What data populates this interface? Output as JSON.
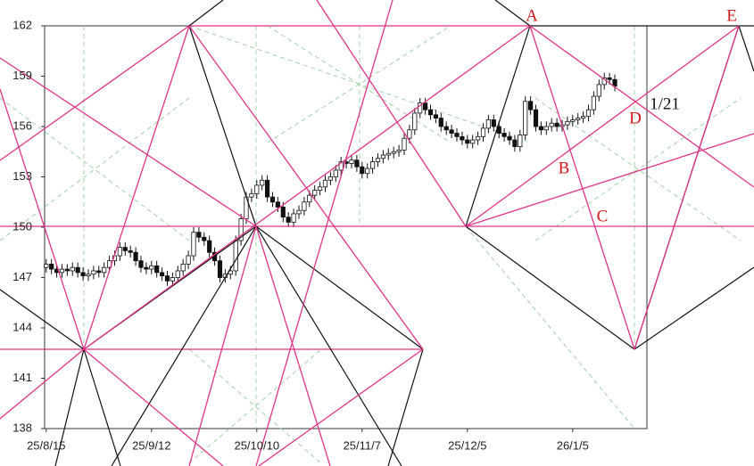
{
  "chart_data": {
    "type": "candlestick",
    "xlim": [
      -0.3,
      114.1
    ],
    "xticks": [
      {
        "value": 0,
        "label": "25/8/15"
      },
      {
        "value": 20,
        "label": "25/9/12"
      },
      {
        "value": 40,
        "label": "25/10/10"
      },
      {
        "value": 60,
        "label": "25/11/7"
      },
      {
        "value": 80,
        "label": "25/12/5"
      },
      {
        "value": 100,
        "label": "26/1/5"
      }
    ],
    "ylim": [
      138,
      162
    ],
    "yticks": [
      138,
      141,
      144,
      147,
      150,
      153,
      156,
      159,
      162
    ],
    "annotations": [
      "A",
      "B",
      "C",
      "D",
      "E",
      "1/21"
    ],
    "open": [
      147.6,
      147.8,
      147.5,
      147.3,
      147.5,
      147.4,
      147.6,
      147.3,
      147.1,
      147.2,
      147.4,
      147.3,
      147.6,
      148.0,
      148.3,
      148.8,
      148.6,
      148.5,
      148.0,
      147.6,
      147.5,
      147.7,
      147.3,
      147.1,
      146.8,
      147.0,
      147.4,
      147.8,
      148.3,
      149.7,
      149.4,
      149.2,
      148.5,
      148.0,
      147.0,
      147.2,
      147.4,
      149.2,
      150.5,
      151.8,
      152.0,
      152.5,
      152.8,
      151.8,
      151.5,
      151.2,
      150.6,
      150.3,
      150.8,
      151.0,
      151.5,
      151.9,
      152.2,
      152.4,
      152.8,
      153.0,
      153.4,
      153.9,
      153.8,
      154.0,
      153.6,
      153.2,
      153.5,
      153.9,
      154.1,
      154.3,
      154.4,
      154.5,
      154.6,
      155.3,
      155.8,
      156.8,
      157.4,
      157.0,
      156.7,
      156.5,
      156.0,
      155.8,
      155.6,
      155.4,
      155.2,
      155.0,
      155.2,
      155.4,
      155.9,
      156.4,
      156.0,
      155.6,
      155.4,
      155.2,
      154.8,
      155.5,
      157.5,
      157.0,
      156.0,
      155.8,
      156.0,
      156.2,
      156.0,
      156.1,
      156.3,
      156.4,
      156.5,
      156.6,
      157.0,
      157.8,
      158.5,
      158.9,
      158.8
    ],
    "high": [
      148.1,
      148.1,
      147.8,
      147.8,
      147.8,
      147.9,
      147.9,
      147.6,
      147.5,
      147.7,
      147.7,
      147.9,
      148.3,
      148.6,
      149.1,
      149.1,
      148.9,
      148.8,
      148.3,
      147.9,
      148.0,
      148.0,
      147.6,
      147.4,
      147.3,
      147.7,
      148.1,
      148.6,
      150.0,
      150.0,
      149.7,
      149.5,
      148.8,
      148.3,
      147.5,
      147.7,
      149.5,
      150.8,
      152.1,
      152.3,
      152.8,
      153.1,
      153.1,
      152.1,
      151.8,
      151.5,
      150.9,
      151.1,
      151.3,
      151.8,
      152.2,
      152.5,
      152.7,
      153.1,
      153.3,
      153.7,
      154.2,
      154.2,
      154.3,
      154.3,
      153.9,
      153.8,
      154.2,
      154.4,
      154.6,
      154.7,
      154.8,
      154.9,
      155.6,
      156.1,
      157.1,
      157.7,
      157.7,
      157.3,
      157.0,
      156.8,
      156.3,
      156.1,
      155.9,
      155.7,
      155.5,
      155.5,
      155.7,
      156.2,
      156.7,
      156.7,
      156.3,
      155.9,
      155.7,
      155.5,
      155.8,
      157.8,
      157.8,
      157.3,
      156.3,
      156.3,
      156.5,
      156.5,
      156.4,
      156.6,
      156.7,
      156.8,
      156.9,
      157.3,
      158.1,
      158.8,
      159.2,
      159.2,
      159.1
    ],
    "low": [
      147.3,
      147.2,
      147.0,
      147.0,
      147.1,
      147.1,
      147.0,
      146.8,
      146.8,
      146.9,
      147.0,
      147.0,
      147.3,
      147.7,
      148.0,
      148.3,
      148.2,
      147.7,
      147.3,
      147.2,
      147.2,
      147.0,
      146.8,
      146.5,
      146.5,
      146.7,
      147.1,
      147.5,
      148.0,
      149.1,
      148.9,
      148.2,
      147.7,
      146.7,
      146.7,
      146.9,
      147.1,
      148.9,
      150.2,
      151.5,
      151.7,
      152.2,
      151.5,
      151.2,
      150.9,
      150.3,
      150.0,
      150.0,
      150.5,
      150.7,
      151.2,
      151.6,
      151.9,
      152.1,
      152.5,
      152.7,
      153.1,
      153.5,
      153.5,
      153.3,
      152.9,
      152.9,
      153.2,
      153.6,
      153.8,
      154.0,
      154.1,
      154.2,
      154.3,
      155.0,
      155.5,
      156.5,
      156.7,
      156.4,
      156.2,
      155.7,
      155.5,
      155.3,
      155.1,
      154.9,
      154.7,
      154.7,
      154.9,
      155.1,
      155.6,
      155.7,
      155.3,
      155.1,
      154.9,
      154.5,
      154.5,
      155.2,
      156.7,
      155.7,
      155.5,
      155.5,
      155.7,
      155.7,
      155.7,
      155.8,
      156.0,
      156.1,
      156.2,
      156.3,
      156.7,
      157.5,
      158.2,
      158.5,
      158.1
    ],
    "close": [
      147.8,
      147.5,
      147.3,
      147.5,
      147.4,
      147.6,
      147.3,
      147.1,
      147.2,
      147.4,
      147.3,
      147.6,
      148.0,
      148.3,
      148.8,
      148.6,
      148.5,
      148.0,
      147.6,
      147.5,
      147.7,
      147.3,
      147.1,
      146.8,
      147.0,
      147.4,
      147.8,
      148.3,
      149.7,
      149.4,
      149.2,
      148.5,
      148.0,
      147.0,
      147.2,
      147.4,
      149.2,
      150.5,
      151.8,
      152.0,
      152.5,
      152.8,
      151.8,
      151.5,
      151.2,
      150.6,
      150.3,
      150.8,
      151.0,
      151.5,
      151.9,
      152.2,
      152.4,
      152.8,
      153.0,
      153.4,
      153.9,
      153.8,
      154.0,
      153.6,
      153.2,
      153.5,
      153.9,
      154.1,
      154.3,
      154.4,
      154.5,
      154.6,
      155.3,
      155.8,
      156.8,
      157.4,
      157.0,
      156.7,
      156.5,
      156.0,
      155.8,
      155.6,
      155.4,
      155.2,
      155.0,
      155.2,
      155.4,
      155.9,
      156.4,
      156.0,
      155.6,
      155.4,
      155.2,
      154.8,
      155.5,
      157.5,
      157.0,
      156.0,
      155.8,
      156.0,
      156.2,
      156.0,
      156.1,
      156.3,
      156.4,
      156.5,
      156.6,
      157.0,
      157.8,
      158.5,
      158.9,
      158.8,
      158.4
    ]
  }
}
